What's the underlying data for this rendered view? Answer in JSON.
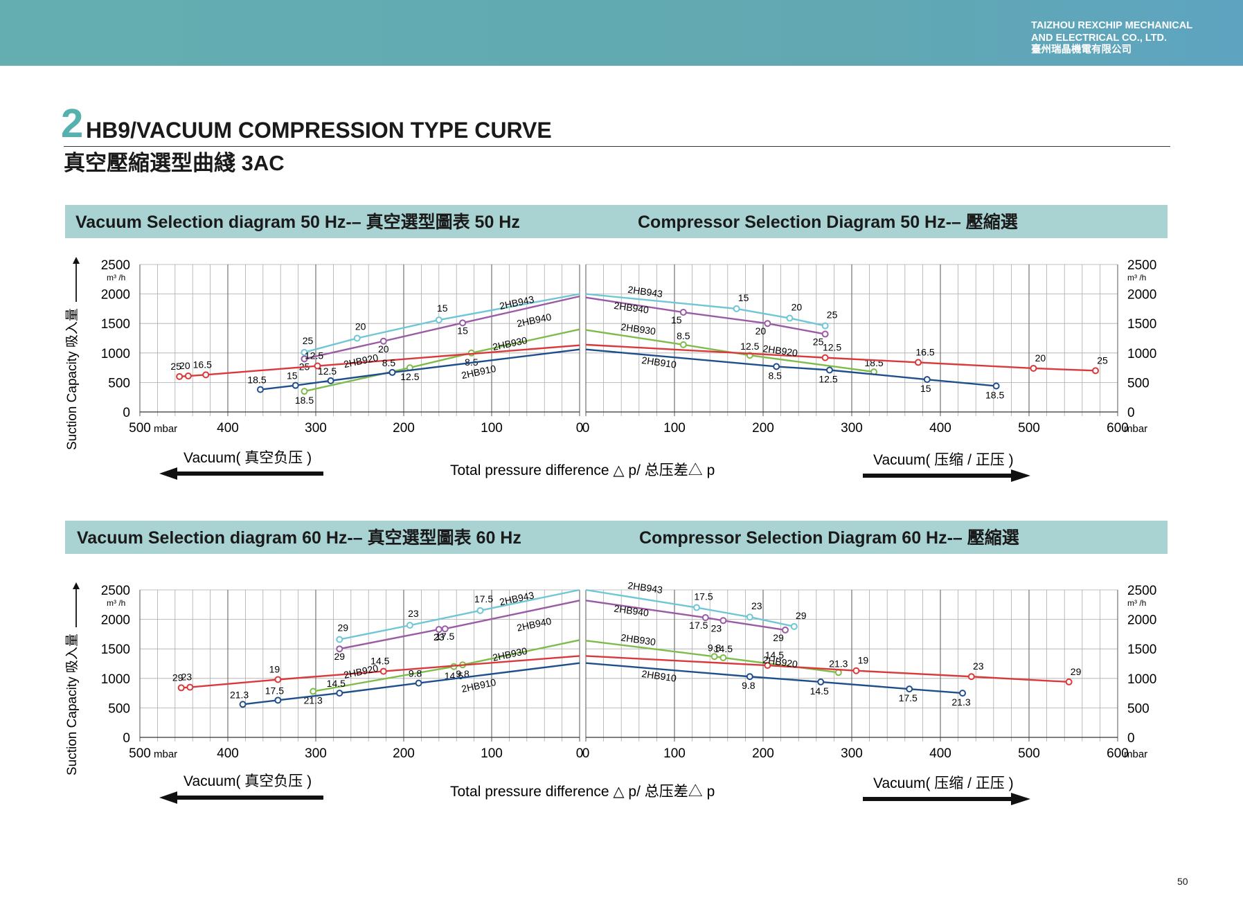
{
  "header": {
    "company_line1": "TAIZHOU REXCHIP MECHANICAL",
    "company_line2": "AND ELECTRICAL CO., LTD.",
    "company_cn": "臺州瑞晶機電有限公司"
  },
  "title": {
    "big_digit": "2",
    "en": "HB9/VACUUM COMPRESSION TYPE CURVE",
    "cn": "真空壓縮選型曲綫 3AC"
  },
  "sections": [
    {
      "vacuum_title": "Vacuum Selection diagram 50 Hz-– 真空選型圖表 50 Hz",
      "compressor_title": "Compressor Selection Diagram 50 Hz-– 壓縮選"
    },
    {
      "vacuum_title": "Vacuum Selection diagram 60 Hz-– 真空選型圖表 60 Hz",
      "compressor_title": "Compressor Selection Diagram 60 Hz-– 壓縮選"
    }
  ],
  "labels": {
    "ylabel": "Suction Capacity 吸入量",
    "unit_y": "m³ /h",
    "unit_x": "mbar",
    "vacuum_caption": "Vacuum( 真空负压 )",
    "compress_caption": "Vacuum( 压缩 / 正压 )",
    "xlabel": "Total pressure difference △ p/ 总压差△ p"
  },
  "colors": {
    "2HB943": "#6ec6d6",
    "2HB940": "#9b5aa6",
    "2HB930": "#7dbb4a",
    "2HB920": "#d9393a",
    "2HB910": "#1f4e8c",
    "band": "#a9d3d3",
    "topbar": "#64aeb0"
  },
  "page_number": "50",
  "chart_data": [
    {
      "type": "line",
      "title": "Vacuum Selection diagram 50 Hz-– 真空選型圖表 50 Hz",
      "xlabel": "Vacuum( 真空负压 )",
      "ylabel": "Suction Capacity 吸入量",
      "x_unit": "mbar",
      "y_unit": "m³ /h",
      "xlim": [
        500,
        0
      ],
      "ylim": [
        0,
        2500
      ],
      "xticks": [
        500,
        400,
        300,
        200,
        100,
        0
      ],
      "yticks": [
        0,
        500,
        1000,
        1500,
        2000,
        2500
      ],
      "grid": true,
      "series": [
        {
          "name": "2HB943",
          "x": [
            313,
            253,
            160,
            0
          ],
          "y": [
            1010,
            1250,
            1560,
            2000
          ],
          "point_labels": [
            "25",
            "20",
            "15",
            ""
          ]
        },
        {
          "name": "2HB940",
          "x": [
            313,
            223,
            133,
            0
          ],
          "y": [
            900,
            1200,
            1510,
            1960
          ],
          "point_labels": [
            "25",
            "20",
            "15",
            ""
          ]
        },
        {
          "name": "2HB930",
          "x": [
            313,
            193,
            123,
            0
          ],
          "y": [
            350,
            750,
            1000,
            1400
          ],
          "point_labels": [
            "18.5",
            "12.5",
            "8.5",
            ""
          ]
        },
        {
          "name": "2HB920",
          "x": [
            455,
            445,
            425,
            298,
            0
          ],
          "y": [
            600,
            610,
            630,
            780,
            1130
          ],
          "point_labels": [
            "25",
            "20",
            "16.5",
            "12.5",
            ""
          ]
        },
        {
          "name": "2HB910",
          "x": [
            363,
            323,
            283,
            213,
            0
          ],
          "y": [
            380,
            450,
            530,
            670,
            1060
          ],
          "point_labels": [
            "18.5",
            "15",
            "12.5",
            "8.5",
            ""
          ]
        }
      ]
    },
    {
      "type": "line",
      "title": "Compressor Selection Diagram 50 Hz-– 壓縮選",
      "xlabel": "Vacuum( 压缩 / 正压 )",
      "ylabel": "Suction Capacity 吸入量",
      "x_unit": "mbar",
      "y_unit": "m³ /h",
      "xlim": [
        0,
        600
      ],
      "ylim": [
        0,
        2500
      ],
      "xticks": [
        0,
        100,
        200,
        300,
        400,
        500,
        600
      ],
      "yticks": [
        0,
        500,
        1000,
        1500,
        2000,
        2500
      ],
      "grid": true,
      "series": [
        {
          "name": "2HB943",
          "x": [
            0,
            170,
            230,
            270
          ],
          "y": [
            2000,
            1750,
            1590,
            1460
          ],
          "point_labels": [
            "",
            "15",
            "20",
            "25"
          ]
        },
        {
          "name": "2HB940",
          "x": [
            0,
            110,
            205,
            270
          ],
          "y": [
            1940,
            1690,
            1500,
            1320
          ],
          "point_labels": [
            "",
            "15",
            "20",
            "25"
          ]
        },
        {
          "name": "2HB930",
          "x": [
            0,
            110,
            185,
            325
          ],
          "y": [
            1390,
            1140,
            960,
            680
          ],
          "point_labels": [
            "",
            "8.5",
            "12.5",
            "18.5"
          ]
        },
        {
          "name": "2HB920",
          "x": [
            0,
            270,
            375,
            505,
            575
          ],
          "y": [
            1140,
            920,
            840,
            740,
            700
          ],
          "point_labels": [
            "",
            "12.5",
            "16.5",
            "20",
            "25"
          ]
        },
        {
          "name": "2HB910",
          "x": [
            0,
            215,
            275,
            385,
            463
          ],
          "y": [
            1060,
            770,
            710,
            550,
            440
          ],
          "point_labels": [
            "",
            "8.5",
            "12.5",
            "15",
            "18.5"
          ]
        }
      ]
    },
    {
      "type": "line",
      "title": "Vacuum Selection diagram 60 Hz-– 真空選型圖表 60 Hz",
      "xlabel": "Vacuum( 真空负压 )",
      "ylabel": "Suction Capacity 吸入量",
      "x_unit": "mbar",
      "y_unit": "m³ /h",
      "xlim": [
        500,
        0
      ],
      "ylim": [
        0,
        2500
      ],
      "xticks": [
        500,
        400,
        300,
        200,
        100,
        0
      ],
      "yticks": [
        0,
        500,
        1000,
        1500,
        2000,
        2500
      ],
      "grid": true,
      "series": [
        {
          "name": "2HB943",
          "x": [
            273,
            193,
            113,
            0
          ],
          "y": [
            1660,
            1900,
            2150,
            2500
          ],
          "point_labels": [
            "29",
            "23",
            "17.5",
            ""
          ]
        },
        {
          "name": "2HB940",
          "x": [
            273,
            160,
            153,
            0
          ],
          "y": [
            1500,
            1830,
            1840,
            2320
          ],
          "point_labels": [
            "29",
            "23",
            "17.5",
            ""
          ]
        },
        {
          "name": "2HB930",
          "x": [
            303,
            143,
            133,
            0
          ],
          "y": [
            780,
            1200,
            1230,
            1650
          ],
          "point_labels": [
            "21.3",
            "14.5",
            "9.8",
            ""
          ]
        },
        {
          "name": "2HB920",
          "x": [
            453,
            443,
            343,
            223,
            0
          ],
          "y": [
            840,
            850,
            980,
            1120,
            1380
          ],
          "point_labels": [
            "29",
            "23",
            "19",
            "14.5",
            ""
          ]
        },
        {
          "name": "2HB910",
          "x": [
            383,
            343,
            273,
            183,
            0
          ],
          "y": [
            560,
            630,
            750,
            920,
            1260
          ],
          "point_labels": [
            "21.3",
            "17.5",
            "14.5",
            "9.8",
            ""
          ]
        }
      ]
    },
    {
      "type": "line",
      "title": "Compressor Selection Diagram 60 Hz-– 壓縮選",
      "xlabel": "Vacuum( 压缩 / 正压 )",
      "ylabel": "Suction Capacity 吸入量",
      "x_unit": "mbar",
      "y_unit": "m³ /h",
      "xlim": [
        0,
        600
      ],
      "ylim": [
        0,
        2500
      ],
      "xticks": [
        0,
        100,
        200,
        300,
        400,
        500,
        600
      ],
      "yticks": [
        0,
        500,
        1000,
        1500,
        2000,
        2500
      ],
      "grid": true,
      "series": [
        {
          "name": "2HB943",
          "x": [
            0,
            125,
            185,
            235
          ],
          "y": [
            2500,
            2200,
            2040,
            1880
          ],
          "point_labels": [
            "",
            "17.5",
            "23",
            "29"
          ]
        },
        {
          "name": "2HB940",
          "x": [
            0,
            135,
            155,
            225
          ],
          "y": [
            2320,
            2030,
            1980,
            1820
          ],
          "point_labels": [
            "",
            "17.5",
            "23",
            "29"
          ]
        },
        {
          "name": "2HB930",
          "x": [
            0,
            145,
            155,
            285
          ],
          "y": [
            1640,
            1370,
            1350,
            1100
          ],
          "point_labels": [
            "",
            "9.8",
            "14.5",
            "21.3"
          ]
        },
        {
          "name": "2HB920",
          "x": [
            0,
            205,
            305,
            435,
            545
          ],
          "y": [
            1380,
            1220,
            1130,
            1030,
            940
          ],
          "point_labels": [
            "",
            "14.5",
            "19",
            "23",
            "29"
          ]
        },
        {
          "name": "2HB910",
          "x": [
            0,
            185,
            265,
            365,
            425
          ],
          "y": [
            1260,
            1030,
            940,
            820,
            750
          ],
          "point_labels": [
            "",
            "9.8",
            "14.5",
            "17.5",
            "21.3"
          ]
        }
      ]
    }
  ]
}
